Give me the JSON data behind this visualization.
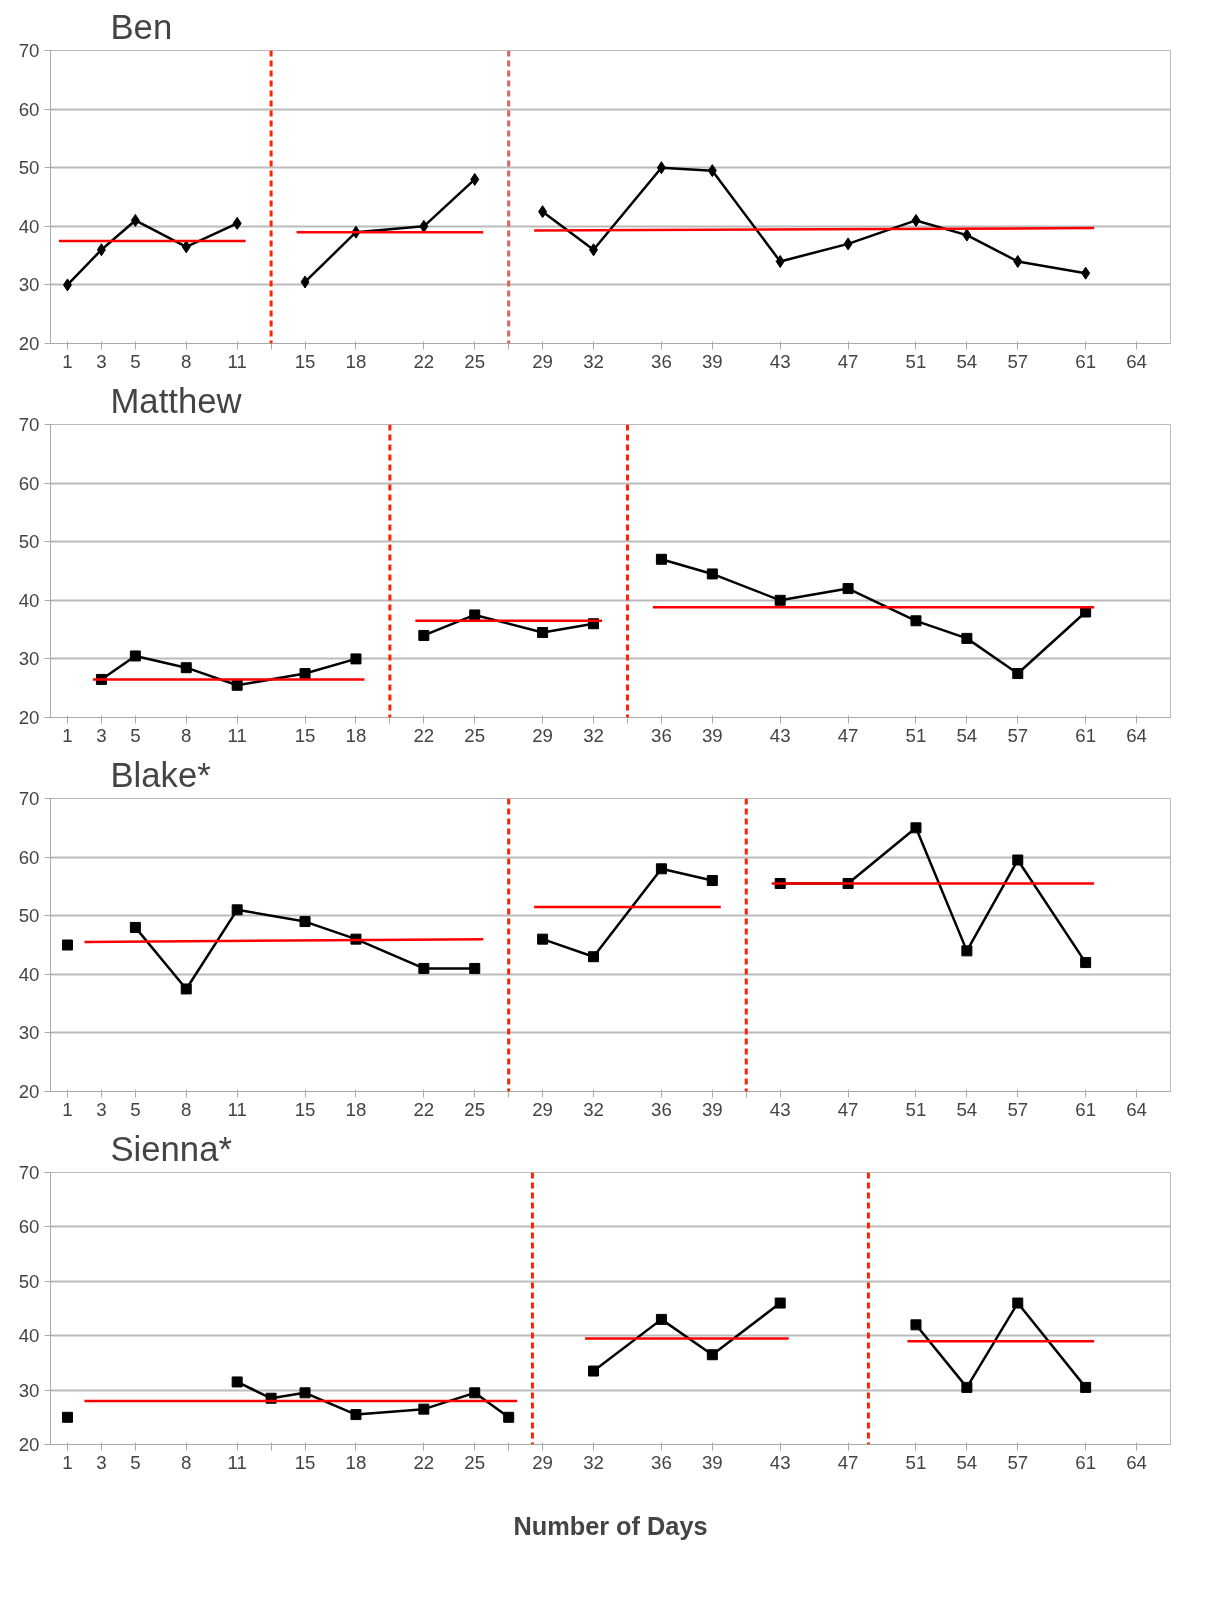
{
  "chart_data": [
    {
      "type": "line",
      "title": "Ben",
      "xlim": [
        0,
        66
      ],
      "ylim": [
        20,
        70
      ],
      "yticks": [
        20,
        30,
        40,
        50,
        60,
        70
      ],
      "grid": "y",
      "marker": "diamond",
      "xticks": [
        1,
        3,
        5,
        8,
        11,
        {
          "value": 13,
          "label": null
        },
        15,
        18,
        22,
        25,
        {
          "value": 27,
          "label": null
        },
        29,
        32,
        36,
        39,
        43,
        47,
        51,
        54,
        57,
        61,
        64
      ],
      "x": [
        1,
        3,
        5,
        8,
        11,
        13,
        15,
        18,
        22,
        25,
        27,
        29,
        32,
        36,
        39,
        43,
        47,
        51,
        54,
        57,
        61
      ],
      "series": [
        {
          "color": "#000000",
          "values": [
            30,
            36,
            41,
            36.5,
            40.5,
            null,
            30.5,
            39,
            40,
            48,
            null,
            42.5,
            36,
            50,
            49.5,
            34,
            37,
            41,
            38.5,
            34,
            32
          ]
        },
        {
          "type": "line",
          "marker": "none",
          "color": "#ff0000",
          "x": [
            0.5,
            11.5
          ],
          "values": [
            37.5,
            37.5
          ]
        },
        {
          "type": "line",
          "marker": "none",
          "color": "#ff0000",
          "x": [
            14.5,
            25.5
          ],
          "values": [
            39,
            39
          ]
        },
        {
          "type": "line",
          "marker": "none",
          "color": "#ff0000",
          "x": [
            28.5,
            61.5
          ],
          "values": [
            39.3,
            39.7
          ]
        }
      ],
      "ref_lines": [
        {
          "axis": "x",
          "value": 13,
          "color": "#ff2200",
          "line_style": "dashed"
        },
        {
          "axis": "x",
          "value": 27,
          "color": "#e06060",
          "line_style": "dashed"
        }
      ]
    },
    {
      "type": "line",
      "title": "Matthew",
      "xlim": [
        0,
        66
      ],
      "ylim": [
        20,
        70
      ],
      "yticks": [
        20,
        30,
        40,
        50,
        60,
        70
      ],
      "grid": "y",
      "marker": "square",
      "xticks": [
        1,
        3,
        5,
        8,
        11,
        15,
        18,
        {
          "value": 20,
          "label": null
        },
        22,
        25,
        29,
        32,
        {
          "value": 34,
          "label": null
        },
        36,
        39,
        43,
        47,
        51,
        54,
        57,
        61,
        64
      ],
      "x": [
        3,
        5,
        8,
        11,
        15,
        18,
        20,
        22,
        25,
        29,
        32,
        34,
        36,
        39,
        43,
        47,
        51,
        54,
        57,
        61
      ],
      "series": [
        {
          "color": "#000000",
          "values": [
            26.5,
            30.5,
            28.5,
            25.5,
            27.5,
            30,
            null,
            34,
            37.5,
            34.5,
            36,
            null,
            47,
            44.5,
            40,
            42,
            36.5,
            33.5,
            27.5,
            38
          ]
        },
        {
          "type": "line",
          "marker": "none",
          "color": "#ff0000",
          "x": [
            2.5,
            18.5
          ],
          "values": [
            26.5,
            26.5
          ]
        },
        {
          "type": "line",
          "marker": "none",
          "color": "#ff0000",
          "x": [
            21.5,
            32.5
          ],
          "values": [
            36.5,
            36.5
          ]
        },
        {
          "type": "line",
          "marker": "none",
          "color": "#ff0000",
          "x": [
            35.5,
            61.5
          ],
          "values": [
            38.8,
            38.8
          ]
        }
      ],
      "ref_lines": [
        {
          "axis": "x",
          "value": 20,
          "color": "#ff2200",
          "line_style": "dashed"
        },
        {
          "axis": "x",
          "value": 34,
          "color": "#ff2200",
          "line_style": "dashed"
        }
      ]
    },
    {
      "type": "line",
      "title": "Blake*",
      "xlim": [
        0,
        66
      ],
      "ylim": [
        20,
        70
      ],
      "yticks": [
        20,
        30,
        40,
        50,
        60,
        70
      ],
      "grid": "y",
      "marker": "square",
      "xticks": [
        1,
        3,
        5,
        8,
        11,
        15,
        18,
        22,
        25,
        {
          "value": 27,
          "label": null
        },
        29,
        32,
        36,
        39,
        {
          "value": 41,
          "label": null
        },
        43,
        47,
        51,
        54,
        57,
        61,
        64
      ],
      "x": [
        1,
        3,
        5,
        8,
        11,
        15,
        18,
        22,
        25,
        27,
        29,
        32,
        36,
        39,
        41,
        43,
        47,
        51,
        54,
        57,
        61
      ],
      "series": [
        {
          "color": "#000000",
          "values": [
            45,
            null,
            48,
            37.5,
            51,
            49,
            46,
            41,
            41,
            null,
            46,
            43,
            58,
            56,
            null,
            55.5,
            55.5,
            65,
            44,
            59.5,
            42
          ]
        },
        {
          "type": "line",
          "marker": "none",
          "color": "#ff0000",
          "x": [
            2,
            25.5
          ],
          "values": [
            45.5,
            46
          ]
        },
        {
          "type": "line",
          "marker": "none",
          "color": "#ff0000",
          "x": [
            28.5,
            39.5
          ],
          "values": [
            51.5,
            51.5
          ]
        },
        {
          "type": "line",
          "marker": "none",
          "color": "#ff0000",
          "x": [
            42.5,
            61.5
          ],
          "values": [
            55.5,
            55.5
          ]
        }
      ],
      "ref_lines": [
        {
          "axis": "x",
          "value": 27,
          "color": "#ff2200",
          "line_style": "dashed"
        },
        {
          "axis": "x",
          "value": 41,
          "color": "#ff2200",
          "line_style": "dashed"
        }
      ]
    },
    {
      "type": "line",
      "title": "Sienna*",
      "xlabel": "Number of Days",
      "xlim": [
        0,
        66
      ],
      "ylim": [
        20,
        70
      ],
      "yticks": [
        20,
        30,
        40,
        50,
        60,
        70
      ],
      "grid": "y",
      "marker": "square",
      "xticks": [
        1,
        3,
        5,
        8,
        11,
        {
          "value": 13,
          "label": null
        },
        15,
        18,
        22,
        25,
        {
          "value": 27,
          "label": null
        },
        29,
        32,
        36,
        39,
        43,
        47,
        51,
        54,
        57,
        61,
        64
      ],
      "x": [
        1,
        3,
        5,
        8,
        11,
        13,
        15,
        18,
        22,
        25,
        27,
        29,
        32,
        36,
        39,
        43,
        47,
        51,
        54,
        57,
        61
      ],
      "series": [
        {
          "color": "#000000",
          "values": [
            25,
            null,
            null,
            null,
            31.5,
            28.5,
            29.5,
            25.5,
            26.5,
            29.5,
            25,
            null,
            33.5,
            43,
            36.5,
            46,
            null,
            42,
            30.5,
            46,
            30.5
          ]
        },
        {
          "type": "line",
          "marker": "none",
          "color": "#ff0000",
          "x": [
            2,
            27.5
          ],
          "values": [
            28,
            28
          ]
        },
        {
          "type": "line",
          "marker": "none",
          "color": "#ff0000",
          "x": [
            31.5,
            43.5
          ],
          "values": [
            39.5,
            39.5
          ]
        },
        {
          "type": "line",
          "marker": "none",
          "color": "#ff0000",
          "x": [
            50.5,
            61.5
          ],
          "values": [
            39,
            39
          ]
        }
      ],
      "ref_lines": [
        {
          "axis": "x",
          "value": 28.4,
          "color": "#ff2200",
          "line_style": "dashed"
        },
        {
          "axis": "x",
          "value": 48.2,
          "color": "#ff2200",
          "line_style": "dashed"
        }
      ]
    }
  ]
}
